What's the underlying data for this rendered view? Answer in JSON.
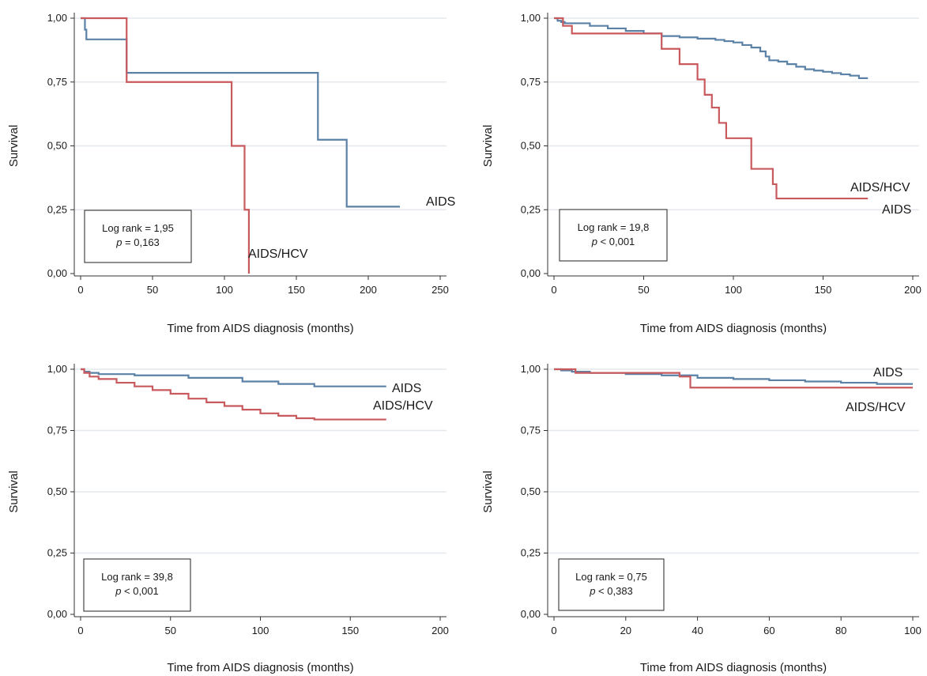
{
  "colors": {
    "aids": "#5b82a6",
    "aids_hcv": "#c8595d",
    "grid": "#e4e8ec",
    "axis": "#333333"
  },
  "chart_data": [
    {
      "type": "line",
      "step": true,
      "xlabel": "Time from AIDS diagnosis (months)",
      "ylabel": "Survival",
      "xlim": [
        0,
        250
      ],
      "ylim": [
        0,
        1
      ],
      "xticks": [
        0,
        50,
        100,
        150,
        200,
        250
      ],
      "yticks": [
        0,
        0.25,
        0.5,
        0.75,
        1
      ],
      "ytick_labels": [
        "0,00",
        "0,25",
        "0,50",
        "0,75",
        "1,00"
      ],
      "grid": true,
      "stat_line1": "Log rank = 1,95",
      "stat_p_symbol": "p",
      "stat_p_rest": " = 0,163",
      "series": [
        {
          "name": "AIDS",
          "x": [
            0,
            3,
            4,
            32,
            165,
            185,
            222
          ],
          "y": [
            1,
            0.955,
            0.917,
            0.786,
            0.524,
            0.262,
            0.262
          ]
        },
        {
          "name": "AIDS/HCV",
          "x": [
            0,
            32,
            105,
            114,
            117,
            117
          ],
          "y": [
            1,
            0.75,
            0.5,
            0.25,
            0.25,
            0
          ]
        }
      ]
    },
    {
      "type": "line",
      "step": true,
      "xlabel": "Time from AIDS diagnosis (months)",
      "ylabel": "Survival",
      "xlim": [
        0,
        200
      ],
      "ylim": [
        0,
        1
      ],
      "xticks": [
        0,
        50,
        100,
        150,
        200
      ],
      "yticks": [
        0,
        0.25,
        0.5,
        0.75,
        1
      ],
      "ytick_labels": [
        "0,00",
        "0,25",
        "0,50",
        "0,75",
        "1,00"
      ],
      "grid": true,
      "stat_line1": "Log rank = 19,8",
      "stat_p_symbol": "p",
      "stat_p_rest": " < 0,001",
      "series": [
        {
          "name": "AIDS",
          "x": [
            0,
            2,
            4,
            6,
            20,
            30,
            40,
            50,
            60,
            70,
            80,
            90,
            95,
            100,
            105,
            110,
            115,
            118,
            120,
            125,
            130,
            135,
            140,
            145,
            150,
            155,
            160,
            165,
            170,
            175
          ],
          "y": [
            1,
            0.99,
            0.985,
            0.98,
            0.97,
            0.96,
            0.95,
            0.94,
            0.93,
            0.925,
            0.92,
            0.915,
            0.91,
            0.905,
            0.895,
            0.885,
            0.87,
            0.85,
            0.835,
            0.83,
            0.82,
            0.81,
            0.8,
            0.795,
            0.79,
            0.785,
            0.78,
            0.775,
            0.765,
            0.765
          ]
        },
        {
          "name": "AIDS/HCV",
          "x": [
            0,
            5,
            10,
            50,
            60,
            70,
            80,
            84,
            88,
            92,
            96,
            110,
            122,
            124,
            175
          ],
          "y": [
            1,
            0.97,
            0.94,
            0.94,
            0.88,
            0.82,
            0.76,
            0.7,
            0.65,
            0.59,
            0.53,
            0.41,
            0.35,
            0.294,
            0.294
          ]
        }
      ]
    },
    {
      "type": "line",
      "step": true,
      "xlabel": "Time from AIDS diagnosis (months)",
      "ylabel": "Survival",
      "xlim": [
        0,
        200
      ],
      "ylim": [
        0,
        1
      ],
      "xticks": [
        0,
        50,
        100,
        150,
        200
      ],
      "yticks": [
        0,
        0.25,
        0.5,
        0.75,
        1
      ],
      "ytick_labels": [
        "0,00",
        "0,25",
        "0,50",
        "0,75",
        "1,00"
      ],
      "grid": true,
      "stat_line1": "Log rank = 39,8",
      "stat_p_symbol": "p",
      "stat_p_rest": " < 0,001",
      "series": [
        {
          "name": "AIDS",
          "x": [
            0,
            2,
            5,
            10,
            30,
            60,
            90,
            110,
            130,
            170
          ],
          "y": [
            1,
            0.99,
            0.985,
            0.98,
            0.975,
            0.965,
            0.95,
            0.94,
            0.93,
            0.93
          ]
        },
        {
          "name": "AIDS/HCV",
          "x": [
            0,
            2,
            5,
            10,
            20,
            30,
            40,
            50,
            60,
            70,
            80,
            90,
            100,
            110,
            120,
            130,
            170
          ],
          "y": [
            1,
            0.985,
            0.97,
            0.96,
            0.945,
            0.93,
            0.915,
            0.9,
            0.88,
            0.865,
            0.85,
            0.835,
            0.82,
            0.81,
            0.8,
            0.795,
            0.795
          ]
        }
      ]
    },
    {
      "type": "line",
      "step": true,
      "xlabel": "Time from AIDS diagnosis (months)",
      "ylabel": "Survival",
      "xlim": [
        0,
        100
      ],
      "ylim": [
        0,
        1
      ],
      "xticks": [
        0,
        20,
        40,
        60,
        80,
        100
      ],
      "yticks": [
        0,
        0.25,
        0.5,
        0.75,
        1
      ],
      "ytick_labels": [
        "0,00",
        "0,25",
        "0,50",
        "0,75",
        "1,00"
      ],
      "grid": true,
      "stat_line1": "Log rank = 0,75",
      "stat_p_symbol": "p",
      "stat_p_rest": " < 0,383",
      "series": [
        {
          "name": "AIDS",
          "x": [
            0,
            2,
            5,
            10,
            20,
            30,
            40,
            50,
            60,
            70,
            80,
            90,
            100
          ],
          "y": [
            1,
            0.995,
            0.99,
            0.985,
            0.98,
            0.975,
            0.965,
            0.96,
            0.955,
            0.95,
            0.945,
            0.94,
            0.94
          ]
        },
        {
          "name": "AIDS/HCV",
          "x": [
            0,
            5,
            6,
            25,
            35,
            38,
            100
          ],
          "y": [
            1,
            1,
            0.985,
            0.985,
            0.97,
            0.925,
            0.925
          ]
        }
      ]
    }
  ]
}
